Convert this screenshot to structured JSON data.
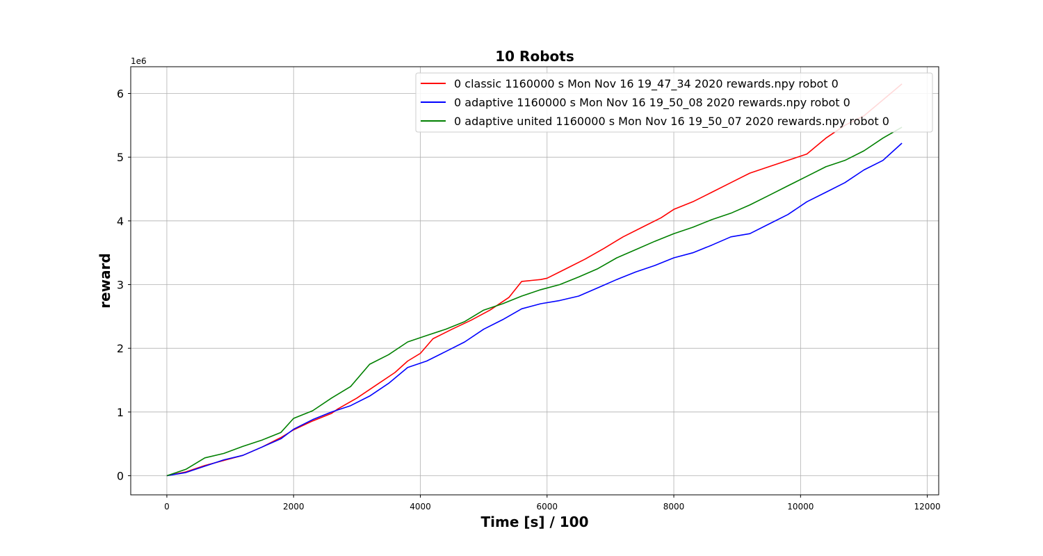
{
  "chart_data": {
    "type": "line",
    "title": "10 Robots",
    "xlabel": "Time [s] / 100",
    "ylabel": "reward",
    "y_multiplier_label": "1e6",
    "xlim": [
      -570,
      12180
    ],
    "ylim": [
      -0.3,
      6.42
    ],
    "x_ticks": [
      0,
      2000,
      4000,
      6000,
      8000,
      10000,
      12000
    ],
    "x_tick_labels": [
      "0",
      "2000",
      "4000",
      "6000",
      "8000",
      "10000",
      "12000"
    ],
    "y_ticks": [
      0,
      1,
      2,
      3,
      4,
      5,
      6
    ],
    "y_tick_labels": [
      "0",
      "1",
      "2",
      "3",
      "4",
      "5",
      "6"
    ],
    "grid": true,
    "legend_position": "upper-right",
    "series": [
      {
        "name": "0 classic 1160000 s Mon Nov 16 19_47_34 2020 rewards.npy robot 0",
        "color": "#ff0000",
        "x": [
          0,
          300,
          600,
          900,
          1200,
          1500,
          1800,
          2000,
          2300,
          2600,
          2700,
          3000,
          3300,
          3600,
          3800,
          4000,
          4200,
          4500,
          4800,
          5100,
          5400,
          5600,
          5900,
          6000,
          6300,
          6600,
          6900,
          7200,
          7500,
          7800,
          8000,
          8300,
          8600,
          8900,
          9200,
          9500,
          9800,
          10100,
          10400,
          10700,
          11000,
          11300,
          11600
        ],
        "values": [
          0,
          0.06,
          0.16,
          0.24,
          0.32,
          0.45,
          0.6,
          0.72,
          0.86,
          0.98,
          1.05,
          1.22,
          1.42,
          1.62,
          1.8,
          1.92,
          2.15,
          2.3,
          2.44,
          2.6,
          2.8,
          3.05,
          3.08,
          3.1,
          3.25,
          3.4,
          3.57,
          3.75,
          3.9,
          4.05,
          4.18,
          4.3,
          4.45,
          4.6,
          4.75,
          4.85,
          4.95,
          5.05,
          5.3,
          5.5,
          5.65,
          5.9,
          6.15
        ]
      },
      {
        "name": "0 adaptive 1160000 s Mon Nov 16 19_50_08 2020 rewards.npy robot 0",
        "color": "#0000ff",
        "x": [
          0,
          300,
          600,
          900,
          1200,
          1500,
          1800,
          2000,
          2300,
          2600,
          2900,
          3200,
          3500,
          3800,
          4100,
          4400,
          4700,
          5000,
          5300,
          5600,
          5900,
          6200,
          6500,
          6800,
          7100,
          7400,
          7700,
          8000,
          8300,
          8600,
          8900,
          9200,
          9500,
          9800,
          10100,
          10400,
          10700,
          11000,
          11300,
          11600
        ],
        "values": [
          0,
          0.05,
          0.15,
          0.25,
          0.32,
          0.45,
          0.58,
          0.73,
          0.88,
          1.0,
          1.1,
          1.25,
          1.45,
          1.7,
          1.8,
          1.95,
          2.1,
          2.3,
          2.45,
          2.62,
          2.7,
          2.75,
          2.82,
          2.95,
          3.08,
          3.2,
          3.3,
          3.42,
          3.5,
          3.62,
          3.75,
          3.8,
          3.95,
          4.1,
          4.3,
          4.45,
          4.6,
          4.8,
          4.95,
          5.22
        ]
      },
      {
        "name": "0 adaptive united 1160000 s Mon Nov 16 19_50_07 2020 rewards.npy robot 0",
        "color": "#008000",
        "x": [
          0,
          300,
          600,
          900,
          1200,
          1500,
          1800,
          2000,
          2300,
          2600,
          2900,
          3200,
          3500,
          3800,
          4100,
          4400,
          4700,
          5000,
          5300,
          5600,
          5900,
          6200,
          6500,
          6800,
          7100,
          7400,
          7700,
          8000,
          8300,
          8600,
          8900,
          9200,
          9500,
          9800,
          10100,
          10400,
          10700,
          11000,
          11300,
          11600
        ],
        "values": [
          0,
          0.1,
          0.28,
          0.35,
          0.46,
          0.56,
          0.68,
          0.9,
          1.02,
          1.22,
          1.4,
          1.75,
          1.9,
          2.1,
          2.2,
          2.3,
          2.42,
          2.6,
          2.7,
          2.82,
          2.92,
          3.0,
          3.12,
          3.25,
          3.42,
          3.55,
          3.68,
          3.8,
          3.9,
          4.02,
          4.12,
          4.25,
          4.4,
          4.55,
          4.7,
          4.85,
          4.95,
          5.1,
          5.3,
          5.47
        ]
      }
    ]
  }
}
